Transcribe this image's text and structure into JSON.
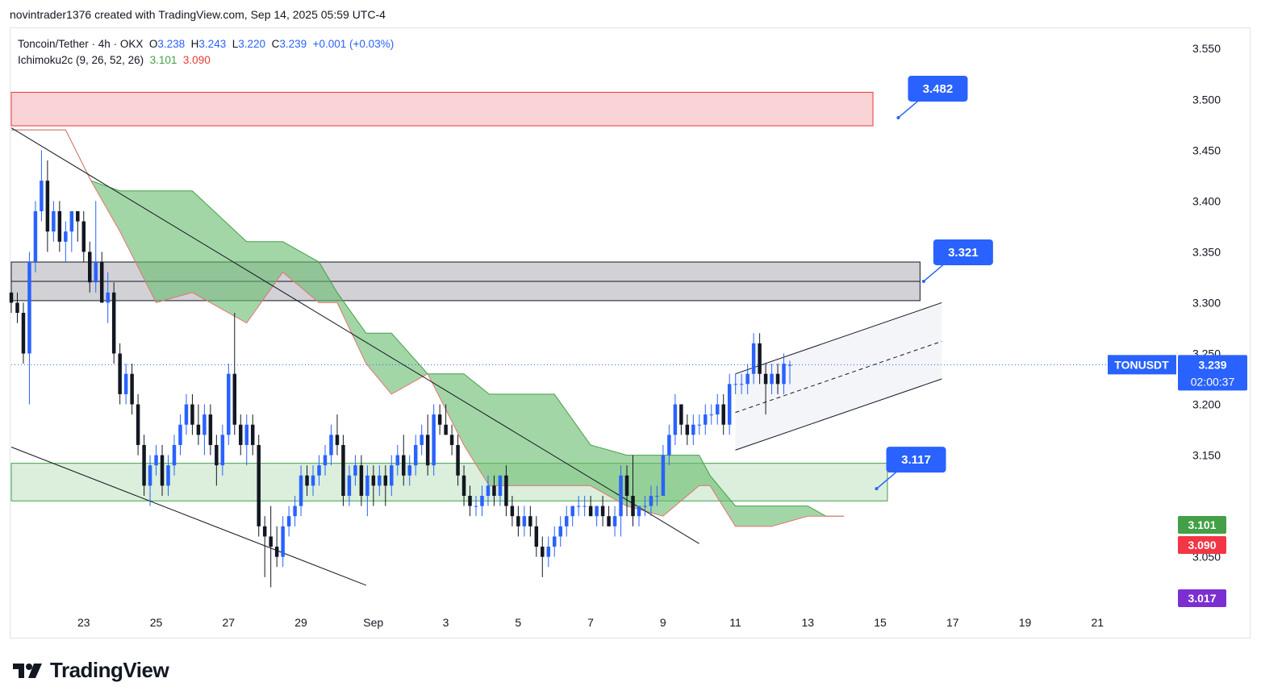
{
  "caption": "novintrader1376 created with TradingView.com, Sep 14, 2025 05:59 UTC-4",
  "legend": {
    "symbol": "Toncoin/Tether · 4h · OKX",
    "o_label": "O",
    "o_value": "3.238",
    "h_label": "H",
    "h_value": "3.243",
    "l_label": "L",
    "l_value": "3.220",
    "c_label": "C",
    "c_value": "3.239",
    "change": "+0.001 (+0.03%)",
    "indicator": "Ichimoku2c (9, 26, 52, 26)",
    "ind_value1": "3.101",
    "ind_value2": "3.090"
  },
  "brand": "TradingView",
  "colors": {
    "up": "#2962ff",
    "down": "#131722",
    "cloud": "#66bb6a",
    "cloud_line": "#e57373",
    "resistance": "#f8bbc0",
    "gray_zone": "#c7c7cc",
    "support": "#c8e6c9",
    "accent": "#2962ff"
  },
  "chart_data": {
    "type": "candlestick",
    "title": "Toncoin/Tether · 4h · OKX",
    "ylim": [
      2.995,
      3.57
    ],
    "yticks": [
      3.55,
      3.5,
      3.45,
      3.4,
      3.35,
      3.3,
      3.25,
      3.2,
      3.15,
      3.1,
      3.05
    ],
    "ytick_labels": [
      "3.550",
      "3.500",
      "3.450",
      "3.400",
      "3.350",
      "3.300",
      "3.250",
      "3.200",
      "3.150",
      "",
      "3.050"
    ],
    "xlim": [
      21.0,
      53.0
    ],
    "xticks": [
      {
        "x": 23,
        "label": "23"
      },
      {
        "x": 25,
        "label": "25"
      },
      {
        "x": 27,
        "label": "27"
      },
      {
        "x": 29,
        "label": "29"
      },
      {
        "x": 31,
        "label": "Sep"
      },
      {
        "x": 33,
        "label": "3"
      },
      {
        "x": 35,
        "label": "5"
      },
      {
        "x": 37,
        "label": "7"
      },
      {
        "x": 39,
        "label": "9"
      },
      {
        "x": 41,
        "label": "11"
      },
      {
        "x": 43,
        "label": "13"
      },
      {
        "x": 45,
        "label": "15"
      },
      {
        "x": 47,
        "label": "17"
      },
      {
        "x": 49,
        "label": "19"
      },
      {
        "x": 51,
        "label": "21"
      }
    ],
    "candles_start": 21.0,
    "candle_step": 0.1667,
    "candles": [
      [
        3.31,
        3.33,
        3.29,
        3.3
      ],
      [
        3.3,
        3.31,
        3.28,
        3.29
      ],
      [
        3.29,
        3.3,
        3.24,
        3.25
      ],
      [
        3.25,
        3.35,
        3.2,
        3.34
      ],
      [
        3.34,
        3.4,
        3.33,
        3.39
      ],
      [
        3.39,
        3.45,
        3.38,
        3.42
      ],
      [
        3.42,
        3.44,
        3.35,
        3.37
      ],
      [
        3.37,
        3.4,
        3.36,
        3.39
      ],
      [
        3.39,
        3.4,
        3.35,
        3.36
      ],
      [
        3.36,
        3.38,
        3.34,
        3.37
      ],
      [
        3.37,
        3.39,
        3.35,
        3.39
      ],
      [
        3.39,
        3.39,
        3.36,
        3.38
      ],
      [
        3.38,
        3.39,
        3.34,
        3.35
      ],
      [
        3.35,
        3.36,
        3.31,
        3.32
      ],
      [
        3.32,
        3.4,
        3.31,
        3.34
      ],
      [
        3.34,
        3.35,
        3.3,
        3.3
      ],
      [
        3.3,
        3.33,
        3.28,
        3.31
      ],
      [
        3.31,
        3.32,
        3.24,
        3.25
      ],
      [
        3.25,
        3.26,
        3.2,
        3.21
      ],
      [
        3.21,
        3.24,
        3.2,
        3.23
      ],
      [
        3.23,
        3.24,
        3.19,
        3.2
      ],
      [
        3.2,
        3.21,
        3.15,
        3.16
      ],
      [
        3.16,
        3.17,
        3.11,
        3.12
      ],
      [
        3.12,
        3.15,
        3.1,
        3.14
      ],
      [
        3.14,
        3.16,
        3.13,
        3.15
      ],
      [
        3.15,
        3.16,
        3.11,
        3.12
      ],
      [
        3.12,
        3.15,
        3.11,
        3.14
      ],
      [
        3.14,
        3.17,
        3.13,
        3.16
      ],
      [
        3.16,
        3.19,
        3.15,
        3.18
      ],
      [
        3.18,
        3.21,
        3.17,
        3.2
      ],
      [
        3.2,
        3.21,
        3.17,
        3.18
      ],
      [
        3.18,
        3.2,
        3.16,
        3.17
      ],
      [
        3.17,
        3.2,
        3.15,
        3.19
      ],
      [
        3.19,
        3.2,
        3.15,
        3.16
      ],
      [
        3.16,
        3.17,
        3.12,
        3.14
      ],
      [
        3.14,
        3.18,
        3.13,
        3.17
      ],
      [
        3.17,
        3.24,
        3.16,
        3.23
      ],
      [
        3.23,
        3.29,
        3.17,
        3.18
      ],
      [
        3.18,
        3.19,
        3.15,
        3.16
      ],
      [
        3.16,
        3.19,
        3.14,
        3.18
      ],
      [
        3.18,
        3.19,
        3.15,
        3.16
      ],
      [
        3.16,
        3.17,
        3.07,
        3.08
      ],
      [
        3.08,
        3.09,
        3.03,
        3.07
      ],
      [
        3.07,
        3.1,
        3.02,
        3.06
      ],
      [
        3.06,
        3.08,
        3.04,
        3.05
      ],
      [
        3.05,
        3.09,
        3.04,
        3.08
      ],
      [
        3.08,
        3.1,
        3.07,
        3.09
      ],
      [
        3.09,
        3.11,
        3.08,
        3.1
      ],
      [
        3.1,
        3.14,
        3.09,
        3.13
      ],
      [
        3.13,
        3.14,
        3.11,
        3.12
      ],
      [
        3.12,
        3.14,
        3.11,
        3.13
      ],
      [
        3.13,
        3.15,
        3.12,
        3.14
      ],
      [
        3.14,
        3.16,
        3.13,
        3.15
      ],
      [
        3.15,
        3.18,
        3.14,
        3.17
      ],
      [
        3.17,
        3.19,
        3.15,
        3.16
      ],
      [
        3.16,
        3.17,
        3.1,
        3.11
      ],
      [
        3.11,
        3.14,
        3.1,
        3.13
      ],
      [
        3.13,
        3.15,
        3.12,
        3.14
      ],
      [
        3.14,
        3.15,
        3.1,
        3.11
      ],
      [
        3.11,
        3.14,
        3.09,
        3.13
      ],
      [
        3.13,
        3.14,
        3.1,
        3.12
      ],
      [
        3.12,
        3.14,
        3.11,
        3.13
      ],
      [
        3.13,
        3.14,
        3.1,
        3.12
      ],
      [
        3.12,
        3.15,
        3.11,
        3.14
      ],
      [
        3.14,
        3.16,
        3.13,
        3.15
      ],
      [
        3.15,
        3.17,
        3.12,
        3.13
      ],
      [
        3.13,
        3.15,
        3.12,
        3.14
      ],
      [
        3.14,
        3.17,
        3.13,
        3.16
      ],
      [
        3.16,
        3.18,
        3.15,
        3.17
      ],
      [
        3.17,
        3.19,
        3.13,
        3.14
      ],
      [
        3.14,
        3.2,
        3.13,
        3.19
      ],
      [
        3.19,
        3.2,
        3.17,
        3.18
      ],
      [
        3.18,
        3.2,
        3.17,
        3.17
      ],
      [
        3.17,
        3.18,
        3.15,
        3.16
      ],
      [
        3.16,
        3.17,
        3.12,
        3.13
      ],
      [
        3.13,
        3.14,
        3.1,
        3.11
      ],
      [
        3.11,
        3.12,
        3.09,
        3.1
      ],
      [
        3.1,
        3.11,
        3.09,
        3.1
      ],
      [
        3.1,
        3.12,
        3.09,
        3.11
      ],
      [
        3.11,
        3.13,
        3.1,
        3.12
      ],
      [
        3.12,
        3.13,
        3.1,
        3.11
      ],
      [
        3.11,
        3.13,
        3.1,
        3.13
      ],
      [
        3.13,
        3.14,
        3.09,
        3.1
      ],
      [
        3.1,
        3.11,
        3.08,
        3.09
      ],
      [
        3.09,
        3.1,
        3.07,
        3.08
      ],
      [
        3.08,
        3.1,
        3.07,
        3.09
      ],
      [
        3.09,
        3.1,
        3.07,
        3.08
      ],
      [
        3.08,
        3.09,
        3.05,
        3.06
      ],
      [
        3.06,
        3.07,
        3.03,
        3.05
      ],
      [
        3.05,
        3.07,
        3.04,
        3.06
      ],
      [
        3.06,
        3.08,
        3.05,
        3.07
      ],
      [
        3.07,
        3.09,
        3.06,
        3.08
      ],
      [
        3.08,
        3.1,
        3.07,
        3.09
      ],
      [
        3.09,
        3.1,
        3.08,
        3.1
      ],
      [
        3.1,
        3.11,
        3.09,
        3.1
      ],
      [
        3.1,
        3.11,
        3.09,
        3.1
      ],
      [
        3.1,
        3.11,
        3.09,
        3.09
      ],
      [
        3.09,
        3.1,
        3.08,
        3.1
      ],
      [
        3.1,
        3.11,
        3.08,
        3.09
      ],
      [
        3.09,
        3.1,
        3.08,
        3.08
      ],
      [
        3.08,
        3.1,
        3.07,
        3.09
      ],
      [
        3.09,
        3.14,
        3.07,
        3.13
      ],
      [
        3.13,
        3.14,
        3.09,
        3.11
      ],
      [
        3.11,
        3.15,
        3.08,
        3.09
      ],
      [
        3.09,
        3.1,
        3.08,
        3.1
      ],
      [
        3.1,
        3.11,
        3.09,
        3.1
      ],
      [
        3.1,
        3.12,
        3.09,
        3.11
      ],
      [
        3.11,
        3.12,
        3.1,
        3.11
      ],
      [
        3.11,
        3.16,
        3.11,
        3.15
      ],
      [
        3.15,
        3.18,
        3.14,
        3.17
      ],
      [
        3.17,
        3.21,
        3.16,
        3.2
      ],
      [
        3.2,
        3.2,
        3.17,
        3.18
      ],
      [
        3.18,
        3.19,
        3.16,
        3.17
      ],
      [
        3.17,
        3.19,
        3.16,
        3.18
      ],
      [
        3.18,
        3.19,
        3.17,
        3.18
      ],
      [
        3.18,
        3.2,
        3.17,
        3.19
      ],
      [
        3.19,
        3.2,
        3.18,
        3.19
      ],
      [
        3.19,
        3.21,
        3.18,
        3.2
      ],
      [
        3.2,
        3.21,
        3.17,
        3.18
      ],
      [
        3.18,
        3.23,
        3.17,
        3.22
      ],
      [
        3.22,
        3.23,
        3.21,
        3.22
      ],
      [
        3.22,
        3.23,
        3.21,
        3.22
      ],
      [
        3.22,
        3.24,
        3.21,
        3.23
      ],
      [
        3.23,
        3.27,
        3.22,
        3.26
      ],
      [
        3.26,
        3.27,
        3.22,
        3.23
      ],
      [
        3.23,
        3.24,
        3.19,
        3.22
      ],
      [
        3.22,
        3.24,
        3.21,
        3.23
      ],
      [
        3.23,
        3.24,
        3.21,
        3.22
      ],
      [
        3.22,
        3.25,
        3.21,
        3.24
      ],
      [
        3.238,
        3.243,
        3.22,
        3.239
      ]
    ],
    "ichimoku_cloud": {
      "x": [
        21.0,
        22.5,
        23.2,
        24.0,
        25.0,
        26.0,
        27.5,
        28.5,
        29.5,
        30.0,
        30.8,
        31.5,
        32.5,
        33.5,
        34.2,
        35.0,
        36.0,
        37.0,
        38.0,
        39.0,
        40.0,
        40.3,
        41.0,
        42.0,
        43.0,
        43.5,
        44.0
      ],
      "span_a": [
        3.47,
        3.47,
        3.42,
        3.41,
        3.41,
        3.41,
        3.36,
        3.36,
        3.34,
        3.31,
        3.27,
        3.27,
        3.23,
        3.23,
        3.21,
        3.21,
        3.21,
        3.16,
        3.15,
        3.15,
        3.15,
        3.13,
        3.1,
        3.1,
        3.1,
        3.09,
        3.09
      ],
      "span_b": [
        3.47,
        3.47,
        3.42,
        3.37,
        3.3,
        3.31,
        3.28,
        3.33,
        3.3,
        3.3,
        3.24,
        3.21,
        3.23,
        3.16,
        3.12,
        3.12,
        3.12,
        3.12,
        3.1,
        3.09,
        3.12,
        3.12,
        3.08,
        3.08,
        3.09,
        3.09,
        3.09
      ]
    },
    "zones": [
      {
        "name": "resistance",
        "from": 3.474,
        "to": 3.507,
        "x0": 21.0,
        "x1": 44.8
      },
      {
        "name": "gray-zone",
        "from": 3.302,
        "to": 3.34,
        "x0": 21.0,
        "x1": 46.1,
        "mid": 3.321
      },
      {
        "name": "support",
        "from": 3.105,
        "to": 3.142,
        "x0": 21.0,
        "x1": 45.2
      }
    ],
    "trendlines": [
      {
        "name": "upper-descending-line",
        "x0": 21.0,
        "y0": 3.472,
        "x1": 40.0,
        "y1": 3.063
      },
      {
        "name": "lower-descending-line",
        "x0": 21.0,
        "y0": 3.158,
        "x1": 30.8,
        "y1": 3.022
      }
    ],
    "channel": {
      "upper": [
        [
          41.0,
          3.23
        ],
        [
          46.7,
          3.3
        ]
      ],
      "lower": [
        [
          41.0,
          3.155
        ],
        [
          46.7,
          3.225
        ]
      ],
      "mid": [
        [
          41.0,
          3.192
        ],
        [
          46.7,
          3.262
        ]
      ]
    },
    "targets": [
      {
        "label": "3.482",
        "x": 45.5,
        "y": 3.482
      },
      {
        "label": "3.321",
        "x": 46.2,
        "y": 3.321
      },
      {
        "label": "3.117",
        "x": 44.9,
        "y": 3.117
      }
    ],
    "price_line": 3.239,
    "badges": {
      "symbol": "TONUSDT",
      "price": "3.239",
      "countdown": "02:00:37",
      "ichi_a": "3.101",
      "ichi_b": "3.090",
      "low": "3.017"
    }
  }
}
